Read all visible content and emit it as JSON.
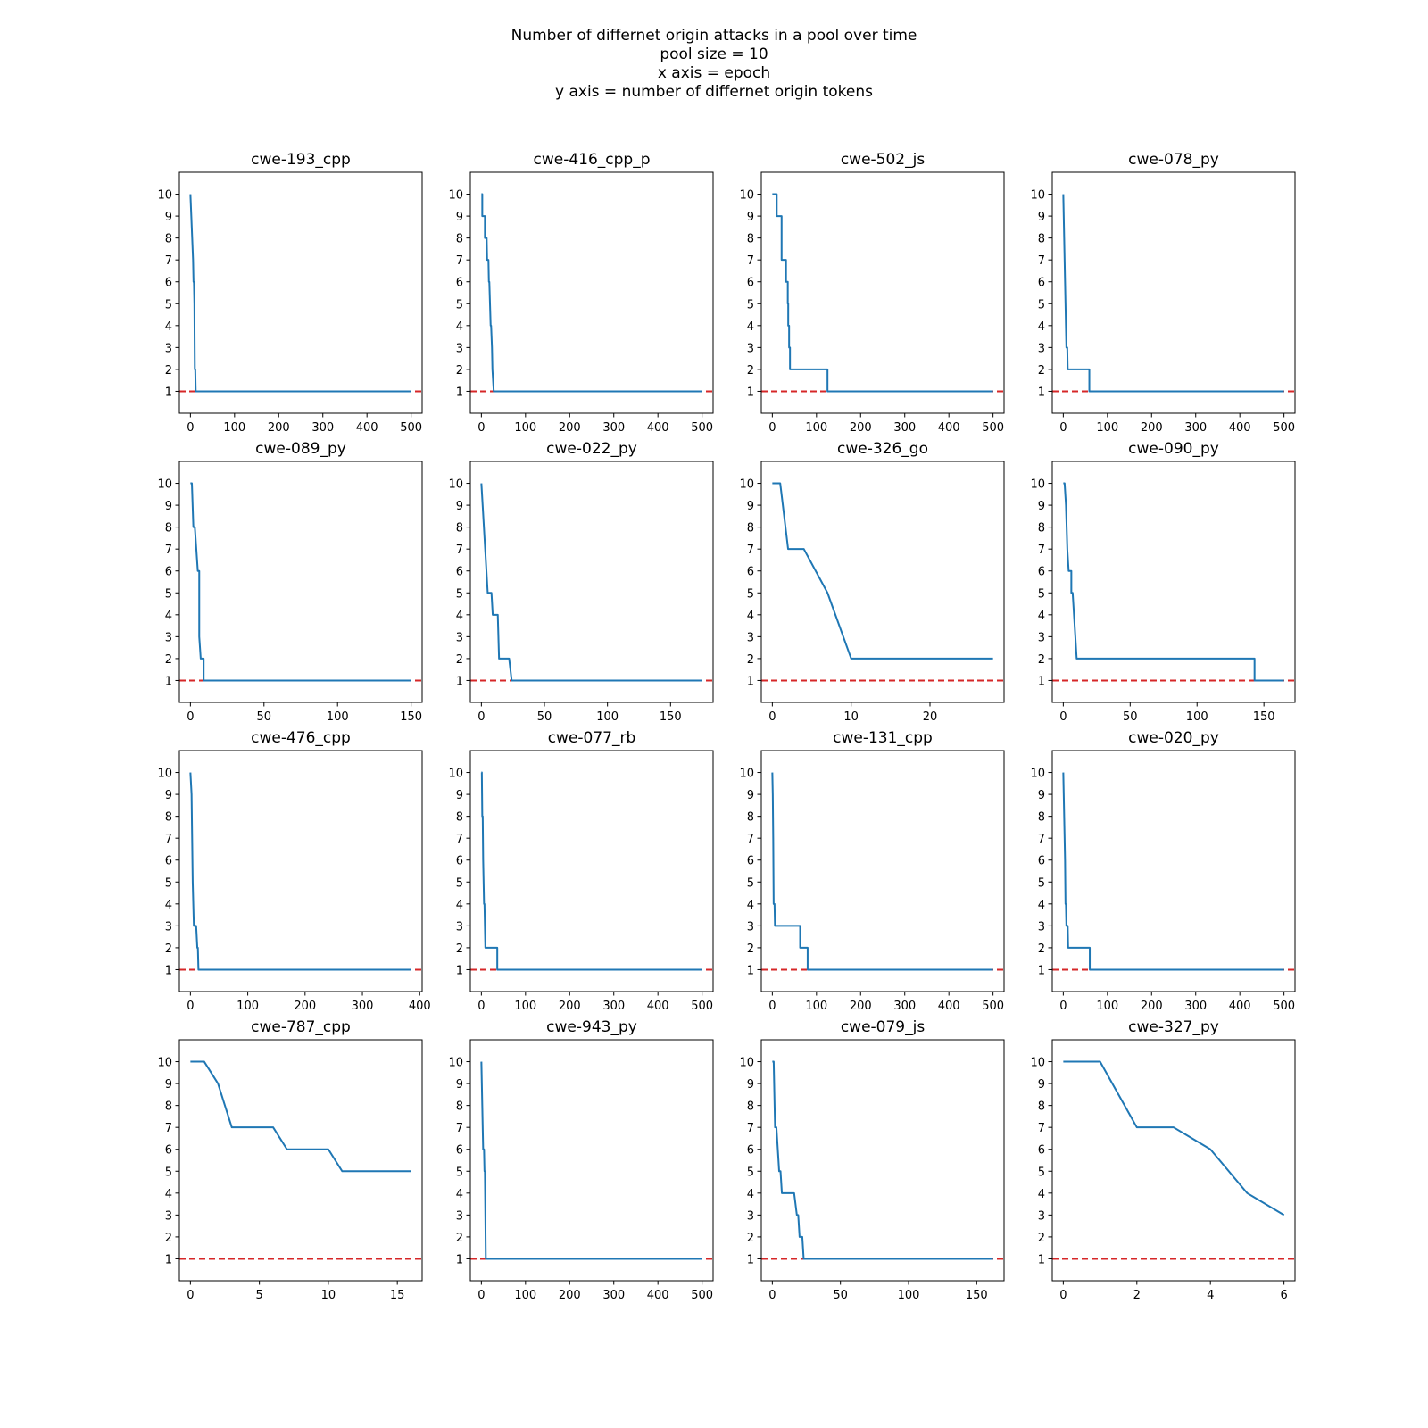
{
  "figure": {
    "title_lines": [
      "Number of differnet origin attacks in a pool over time",
      "pool size = 10",
      "x axis = epoch",
      "y axis = number of differnet origin tokens"
    ]
  },
  "colors": {
    "series": "#1f77b4",
    "reference": "#d62728",
    "axes": "#000000"
  },
  "chart_data": [
    {
      "type": "line",
      "title": "cwe-193_cpp",
      "xlim": [
        -25,
        525
      ],
      "ylim": [
        0,
        11
      ],
      "xticks": [
        0,
        100,
        200,
        300,
        400,
        500
      ],
      "yticks": [
        1,
        2,
        3,
        4,
        5,
        6,
        7,
        8,
        9,
        10
      ],
      "reference_line": {
        "y": 1,
        "style": "dashed"
      },
      "series": [
        {
          "x": [
            0,
            2,
            6,
            7,
            7,
            8,
            9,
            10,
            11,
            12,
            500
          ],
          "y": [
            10,
            9,
            7,
            6,
            6,
            6,
            5,
            2,
            2,
            1,
            1
          ]
        }
      ]
    },
    {
      "type": "line",
      "title": "cwe-416_cpp_p",
      "xlim": [
        -25,
        525
      ],
      "ylim": [
        0,
        11
      ],
      "xticks": [
        0,
        100,
        200,
        300,
        400,
        500
      ],
      "yticks": [
        1,
        2,
        3,
        4,
        5,
        6,
        7,
        8,
        9,
        10
      ],
      "reference_line": {
        "y": 1,
        "style": "dashed"
      },
      "series": [
        {
          "x": [
            0,
            2,
            2,
            6,
            6,
            8,
            8,
            11,
            11,
            12,
            13,
            13,
            16,
            16,
            17,
            17,
            18,
            18,
            21,
            21,
            22,
            22,
            24,
            24,
            25,
            25,
            28,
            28,
            500
          ],
          "y": [
            10,
            10,
            9,
            9,
            9,
            9,
            8,
            8,
            8,
            8,
            7,
            7,
            7,
            7,
            6,
            6,
            6,
            6,
            4,
            4,
            4,
            4,
            3,
            3,
            2,
            2,
            1,
            1,
            1
          ]
        }
      ]
    },
    {
      "type": "line",
      "title": "cwe-502_js",
      "xlim": [
        -25,
        525
      ],
      "ylim": [
        0,
        11
      ],
      "xticks": [
        0,
        100,
        200,
        300,
        400,
        500
      ],
      "yticks": [
        1,
        2,
        3,
        4,
        5,
        6,
        7,
        8,
        9,
        10
      ],
      "reference_line": {
        "y": 1,
        "style": "dashed"
      },
      "series": [
        {
          "x": [
            0,
            10,
            10,
            21,
            21,
            31,
            31,
            35,
            35,
            36,
            36,
            38,
            38,
            40,
            40,
            125,
            125,
            500
          ],
          "y": [
            10,
            10,
            9,
            9,
            7,
            7,
            6,
            6,
            5,
            5,
            4,
            4,
            3,
            3,
            2,
            2,
            1,
            1
          ]
        }
      ]
    },
    {
      "type": "line",
      "title": "cwe-078_py",
      "xlim": [
        -25,
        525
      ],
      "ylim": [
        0,
        11
      ],
      "xticks": [
        0,
        100,
        200,
        300,
        400,
        500
      ],
      "yticks": [
        1,
        2,
        3,
        4,
        5,
        6,
        7,
        8,
        9,
        10
      ],
      "reference_line": {
        "y": 1,
        "style": "dashed"
      },
      "series": [
        {
          "x": [
            0,
            2,
            4,
            5,
            6,
            6,
            7,
            8,
            8,
            9,
            10,
            59,
            59,
            500
          ],
          "y": [
            10,
            8,
            6,
            5,
            4,
            4,
            3,
            3,
            3,
            3,
            2,
            2,
            1,
            1
          ]
        }
      ]
    },
    {
      "type": "line",
      "title": "cwe-089_py",
      "xlim": [
        -7.5,
        157.5
      ],
      "ylim": [
        0,
        11
      ],
      "xticks": [
        0,
        50,
        100,
        150
      ],
      "yticks": [
        1,
        2,
        3,
        4,
        5,
        6,
        7,
        8,
        9,
        10
      ],
      "reference_line": {
        "y": 1,
        "style": "dashed"
      },
      "series": [
        {
          "x": [
            0,
            1,
            2,
            2,
            3,
            3,
            5,
            6,
            6,
            7,
            8,
            8,
            9,
            9,
            10,
            150
          ],
          "y": [
            10,
            10,
            8,
            8,
            8,
            8,
            6,
            6,
            3,
            2,
            2,
            2,
            2,
            1,
            1,
            1
          ]
        }
      ]
    },
    {
      "type": "line",
      "title": "cwe-022_py",
      "xlim": [
        -8.75,
        183.75
      ],
      "ylim": [
        0,
        11
      ],
      "xticks": [
        0,
        50,
        100,
        150
      ],
      "yticks": [
        1,
        2,
        3,
        4,
        5,
        6,
        7,
        8,
        9,
        10
      ],
      "reference_line": {
        "y": 1,
        "style": "dashed"
      },
      "series": [
        {
          "x": [
            0,
            1,
            2,
            3,
            4,
            5,
            6,
            6,
            7,
            8,
            9,
            10,
            10,
            11,
            12,
            13,
            13,
            14,
            14,
            15,
            15,
            18,
            18,
            22,
            22,
            24,
            24,
            175
          ],
          "y": [
            10,
            9,
            8,
            7,
            6,
            5,
            5,
            5,
            5,
            5,
            4,
            4,
            4,
            4,
            4,
            4,
            4,
            2,
            2,
            2,
            2,
            2,
            2,
            2,
            2,
            1,
            1,
            1
          ]
        }
      ]
    },
    {
      "type": "line",
      "title": "cwe-326_go",
      "xlim": [
        -1.4,
        29.4
      ],
      "ylim": [
        0,
        11
      ],
      "xticks": [
        0,
        10,
        20
      ],
      "yticks": [
        1,
        2,
        3,
        4,
        5,
        6,
        7,
        8,
        9,
        10
      ],
      "reference_line": {
        "y": 1,
        "style": "dashed"
      },
      "series": [
        {
          "x": [
            0,
            1,
            2,
            4,
            7,
            10,
            28
          ],
          "y": [
            10,
            10,
            7,
            7,
            5,
            2,
            2
          ]
        }
      ]
    },
    {
      "type": "line",
      "title": "cwe-090_py",
      "xlim": [
        -8.25,
        173.25
      ],
      "ylim": [
        0,
        11
      ],
      "xticks": [
        0,
        50,
        100,
        150
      ],
      "yticks": [
        1,
        2,
        3,
        4,
        5,
        6,
        7,
        8,
        9,
        10
      ],
      "reference_line": {
        "y": 1,
        "style": "dashed"
      },
      "series": [
        {
          "x": [
            0,
            1,
            2,
            3,
            4,
            5,
            6,
            6,
            7,
            8,
            9,
            10,
            11,
            143,
            143,
            144,
            145,
            165
          ],
          "y": [
            10,
            10,
            9,
            7,
            6,
            6,
            6,
            5,
            5,
            4,
            3,
            2,
            2,
            2,
            1,
            1,
            1,
            1
          ]
        }
      ]
    },
    {
      "type": "line",
      "title": "cwe-476_cpp",
      "xlim": [
        -19.25,
        404.25
      ],
      "ylim": [
        0,
        11
      ],
      "xticks": [
        0,
        100,
        200,
        300,
        400
      ],
      "yticks": [
        1,
        2,
        3,
        4,
        5,
        6,
        7,
        8,
        9,
        10
      ],
      "reference_line": {
        "y": 1,
        "style": "dashed"
      },
      "series": [
        {
          "x": [
            0,
            2,
            4,
            5,
            6,
            7,
            8,
            9,
            10,
            12,
            12,
            13,
            14,
            385
          ],
          "y": [
            10,
            9,
            5,
            4,
            3,
            3,
            3,
            3,
            3,
            2,
            2,
            2,
            1,
            1
          ]
        }
      ]
    },
    {
      "type": "line",
      "title": "cwe-077_rb",
      "xlim": [
        -25,
        525
      ],
      "ylim": [
        0,
        11
      ],
      "xticks": [
        0,
        100,
        200,
        300,
        400,
        500
      ],
      "yticks": [
        1,
        2,
        3,
        4,
        5,
        6,
        7,
        8,
        9,
        10
      ],
      "reference_line": {
        "y": 1,
        "style": "dashed"
      },
      "series": [
        {
          "x": [
            0,
            1,
            2,
            3,
            4,
            5,
            6,
            7,
            8,
            9,
            10,
            36,
            36,
            500
          ],
          "y": [
            10,
            10,
            8,
            8,
            6,
            5,
            4,
            4,
            3,
            2,
            2,
            2,
            1,
            1
          ]
        }
      ]
    },
    {
      "type": "line",
      "title": "cwe-131_cpp",
      "xlim": [
        -25,
        525
      ],
      "ylim": [
        0,
        11
      ],
      "xticks": [
        0,
        100,
        200,
        300,
        400,
        500
      ],
      "yticks": [
        1,
        2,
        3,
        4,
        5,
        6,
        7,
        8,
        9,
        10
      ],
      "reference_line": {
        "y": 1,
        "style": "dashed"
      },
      "series": [
        {
          "x": [
            0,
            1,
            2,
            3,
            4,
            5,
            6,
            7,
            10,
            63,
            63,
            77,
            77,
            80,
            80,
            500
          ],
          "y": [
            10,
            9,
            7,
            4,
            4,
            4,
            3,
            3,
            3,
            3,
            2,
            2,
            2,
            2,
            1,
            1
          ]
        }
      ]
    },
    {
      "type": "line",
      "title": "cwe-020_py",
      "xlim": [
        -25,
        525
      ],
      "ylim": [
        0,
        11
      ],
      "xticks": [
        0,
        100,
        200,
        300,
        400,
        500
      ],
      "yticks": [
        1,
        2,
        3,
        4,
        5,
        6,
        7,
        8,
        9,
        10
      ],
      "reference_line": {
        "y": 1,
        "style": "dashed"
      },
      "series": [
        {
          "x": [
            0,
            2,
            3,
            4,
            5,
            6,
            7,
            8,
            9,
            10,
            11,
            12,
            60,
            60,
            500
          ],
          "y": [
            10,
            8,
            7,
            6,
            4,
            4,
            3,
            3,
            3,
            3,
            2,
            2,
            2,
            1,
            1
          ]
        }
      ]
    },
    {
      "type": "line",
      "title": "cwe-787_cpp",
      "xlim": [
        -0.8,
        16.8
      ],
      "ylim": [
        0,
        11
      ],
      "xticks": [
        0,
        5,
        10,
        15
      ],
      "yticks": [
        1,
        2,
        3,
        4,
        5,
        6,
        7,
        8,
        9,
        10
      ],
      "reference_line": {
        "y": 1,
        "style": "dashed"
      },
      "series": [
        {
          "x": [
            0,
            1,
            2,
            3,
            4,
            5,
            6,
            7,
            8,
            9,
            10,
            11,
            12,
            13,
            14,
            15,
            16
          ],
          "y": [
            10,
            10,
            9,
            7,
            7,
            7,
            7,
            6,
            6,
            6,
            6,
            5,
            5,
            5,
            5,
            5,
            5
          ]
        }
      ]
    },
    {
      "type": "line",
      "title": "cwe-943_py",
      "xlim": [
        -25,
        525
      ],
      "ylim": [
        0,
        11
      ],
      "xticks": [
        0,
        100,
        200,
        300,
        400,
        500
      ],
      "yticks": [
        1,
        2,
        3,
        4,
        5,
        6,
        7,
        8,
        9,
        10
      ],
      "reference_line": {
        "y": 1,
        "style": "dashed"
      },
      "series": [
        {
          "x": [
            0,
            2,
            4,
            5,
            6,
            7,
            8,
            10,
            500
          ],
          "y": [
            10,
            8,
            6,
            6,
            6,
            5,
            5,
            1,
            1
          ]
        }
      ]
    },
    {
      "type": "line",
      "title": "cwe-079_js",
      "xlim": [
        -8.1,
        170.1
      ],
      "ylim": [
        0,
        11
      ],
      "xticks": [
        0,
        50,
        100,
        150
      ],
      "yticks": [
        1,
        2,
        3,
        4,
        5,
        6,
        7,
        8,
        9,
        10
      ],
      "reference_line": {
        "y": 1,
        "style": "dashed"
      },
      "series": [
        {
          "x": [
            0,
            1,
            2,
            3,
            4,
            5,
            6,
            7,
            10,
            16,
            18,
            19,
            20,
            21,
            22,
            23,
            24,
            162
          ],
          "y": [
            10,
            10,
            7,
            7,
            6,
            5,
            5,
            4,
            4,
            4,
            3,
            3,
            2,
            2,
            2,
            1,
            1,
            1
          ]
        }
      ]
    },
    {
      "type": "line",
      "title": "cwe-327_py",
      "xlim": [
        -0.3,
        6.3
      ],
      "ylim": [
        0,
        11
      ],
      "xticks": [
        0,
        2,
        4,
        6
      ],
      "yticks": [
        1,
        2,
        3,
        4,
        5,
        6,
        7,
        8,
        9,
        10
      ],
      "reference_line": {
        "y": 1,
        "style": "dashed"
      },
      "series": [
        {
          "x": [
            0,
            1,
            2,
            3,
            4,
            5,
            6
          ],
          "y": [
            10,
            10,
            7,
            7,
            6,
            4,
            3
          ]
        }
      ]
    }
  ]
}
